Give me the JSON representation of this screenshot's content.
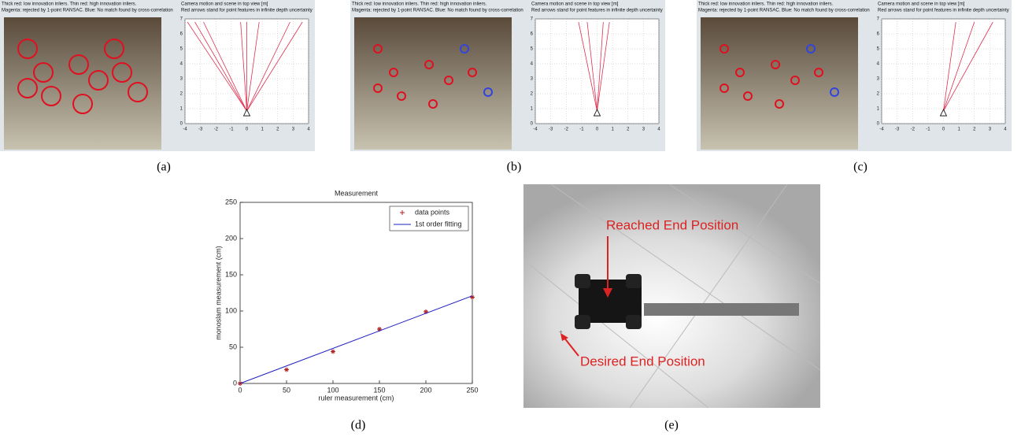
{
  "panels": [
    {
      "caption": "(a)",
      "camera_header": [
        "Thick red: low innovation inliers. Thin red: high innovation inliers.",
        "Magenta: rejected by 1-point RANSAC. Blue: No match found by cross-correlation"
      ],
      "plot_header": [
        "Camera motion and scene in top view [m]",
        "Red arrows stand for point features in infinite depth uncertainty"
      ],
      "xticks": [
        -4,
        -3,
        -2,
        -1,
        0,
        1,
        2,
        3,
        4
      ],
      "yticks": [
        0,
        1,
        2,
        3,
        4,
        5,
        6,
        7
      ]
    },
    {
      "caption": "(b)",
      "camera_header": [
        "Thick red: low innovation inliers. Thin red: high innovation inliers.",
        "Magenta: rejected by 1-point RANSAC. Blue: No match found by cross-correlation"
      ],
      "plot_header": [
        "Camera motion and scene in top view [m]",
        "Red arrows stand for point features in infinite depth uncertainty"
      ],
      "xticks": [
        -4,
        -3,
        -2,
        -1,
        0,
        1,
        2,
        3,
        4
      ],
      "yticks": [
        0,
        1,
        2,
        3,
        4,
        5,
        6,
        7
      ]
    },
    {
      "caption": "(c)",
      "camera_header": [
        "Thick red: low innovation inliers. Thin red: high innovation inliers.",
        "Magenta: rejected by 1-point RANSAC. Blue: No match found by cross-correlation"
      ],
      "plot_header": [
        "Camera motion and scene in top view [m]",
        "Red arrows stand for point features in infinite depth uncertainty"
      ],
      "xticks": [
        -4,
        -3,
        -2,
        -1,
        0,
        1,
        2,
        3,
        4
      ],
      "yticks": [
        0,
        1,
        2,
        3,
        4,
        5,
        6,
        7
      ]
    }
  ],
  "chart_data": {
    "type": "scatter",
    "title": "Measurement",
    "x_label": "ruler measurement (cm)",
    "y_label": "monoslam measurement (cm)",
    "x": [
      0,
      50,
      100,
      150,
      200,
      250
    ],
    "series": [
      {
        "name": "data points",
        "color": "#b22222",
        "values": [
          0,
          19,
          44,
          75,
          99,
          119
        ]
      },
      {
        "name": "1st order fitting",
        "color": "#1f1fbf",
        "x": [
          0,
          250
        ],
        "values": [
          0,
          121
        ]
      }
    ],
    "xlim": [
      0,
      250
    ],
    "ylim": [
      0,
      250
    ],
    "xticks": [
      0,
      50,
      100,
      150,
      200,
      250
    ],
    "yticks": [
      0,
      50,
      100,
      150,
      200,
      250
    ],
    "legend": "upper right",
    "caption": "(d)"
  },
  "photo": {
    "labels": [
      "Reached End Position",
      "Desired End Position"
    ],
    "caption": "(e)"
  }
}
